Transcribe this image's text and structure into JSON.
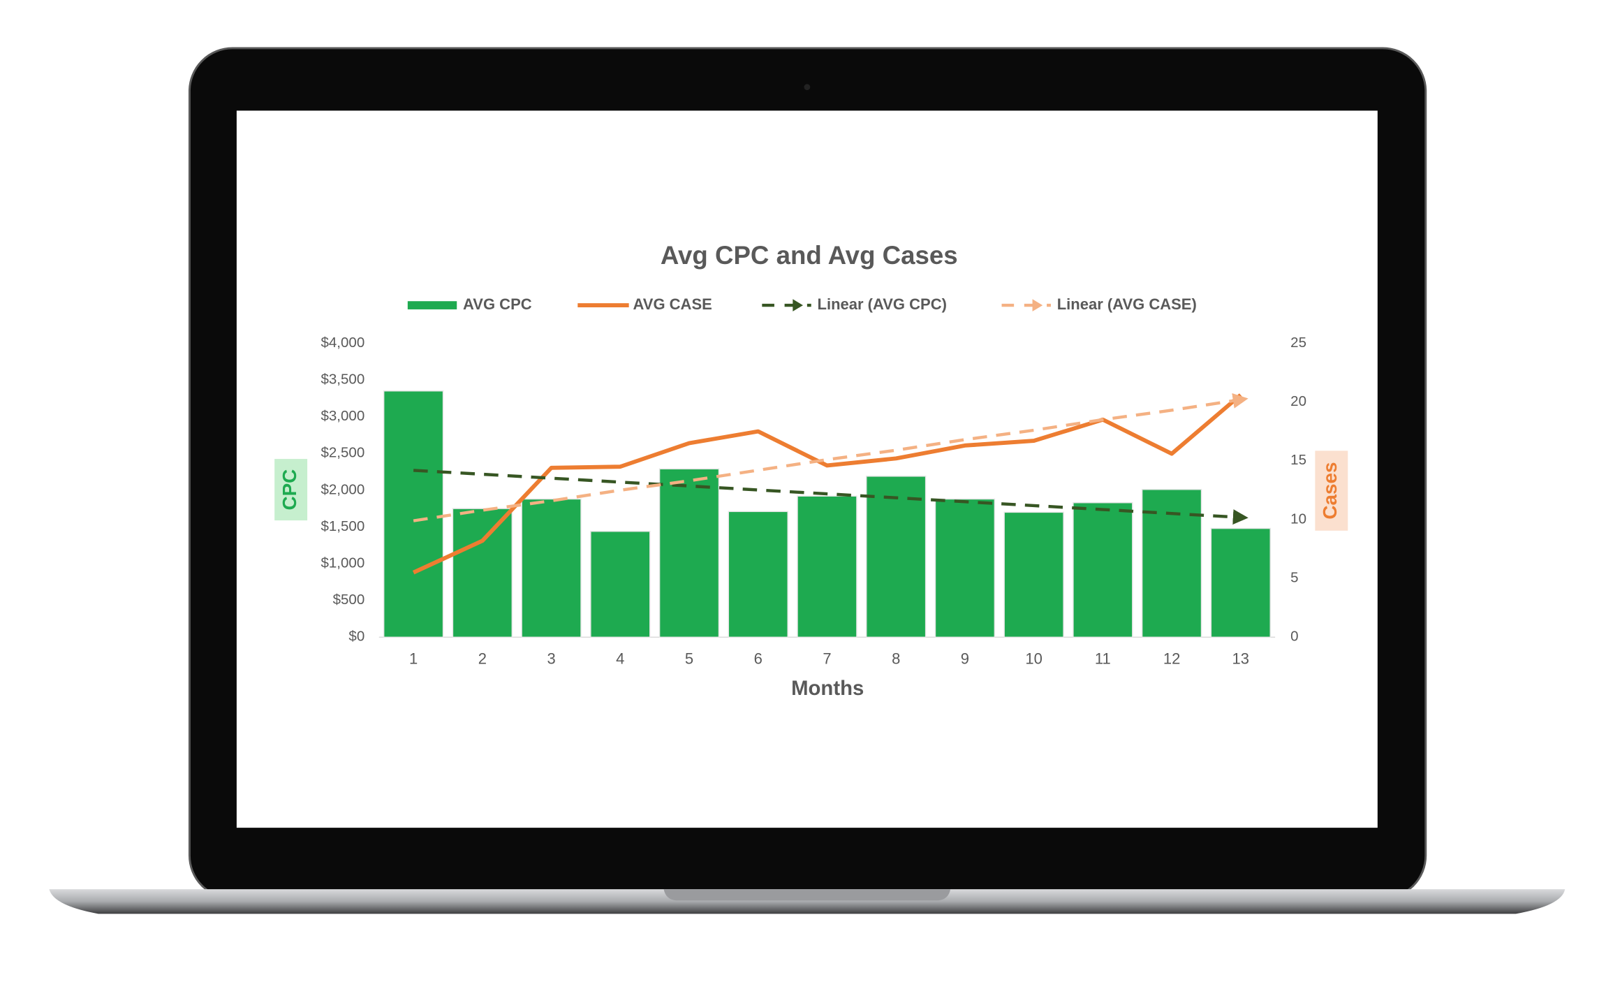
{
  "chart_data": {
    "type": "bar",
    "title": "Avg CPC and Avg Cases",
    "x_label": "Months",
    "y_label": "CPC",
    "y2_label": "Cases",
    "categories": [
      "1",
      "2",
      "3",
      "4",
      "5",
      "6",
      "7",
      "8",
      "9",
      "10",
      "11",
      "12",
      "13"
    ],
    "ylim": [
      0,
      4000
    ],
    "yticks": [
      {
        "value": 0,
        "label": "$0"
      },
      {
        "value": 500,
        "label": "$500"
      },
      {
        "value": 1000,
        "label": "$1,000"
      },
      {
        "value": 1500,
        "label": "$1,500"
      },
      {
        "value": 2000,
        "label": "$2,000"
      },
      {
        "value": 2500,
        "label": "$2,500"
      },
      {
        "value": 3000,
        "label": "$3,000"
      },
      {
        "value": 3500,
        "label": "$3,500"
      },
      {
        "value": 4000,
        "label": "$4,000"
      }
    ],
    "y2lim": [
      0,
      25
    ],
    "y2ticks": [
      0,
      5,
      10,
      15,
      20,
      25
    ],
    "series": [
      {
        "name": "AVG CPC",
        "type": "bar",
        "color": "#1eaa50",
        "values": [
          3350,
          1750,
          1880,
          1440,
          2290,
          1710,
          1920,
          2190,
          1880,
          1700,
          1830,
          2010,
          1480
        ]
      },
      {
        "name": "AVG CASE",
        "type": "line",
        "axis": "y2",
        "color": "#ed7d31",
        "values": [
          5.5,
          8.2,
          14.4,
          14.5,
          16.5,
          17.5,
          14.6,
          15.2,
          16.3,
          16.7,
          18.5,
          15.6,
          20.6
        ]
      },
      {
        "name": "Linear (AVG CPC)",
        "type": "line",
        "dashed": true,
        "color": "#375623",
        "values": [
          2270,
          2217,
          2163,
          2110,
          2057,
          2003,
          1950,
          1897,
          1843,
          1790,
          1737,
          1683,
          1630
        ]
      },
      {
        "name": "Linear (AVG CASE)",
        "type": "line",
        "dashed": true,
        "axis": "y2",
        "color": "#f4b183",
        "values": [
          9.9,
          10.8,
          11.6,
          12.5,
          13.3,
          14.2,
          15.1,
          15.9,
          16.8,
          17.6,
          18.5,
          19.3,
          20.2
        ]
      }
    ]
  }
}
